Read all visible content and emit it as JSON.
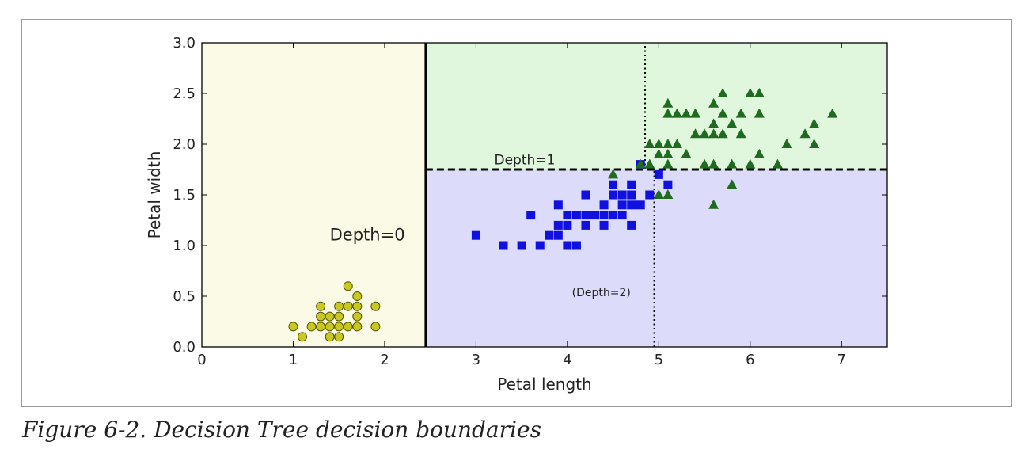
{
  "caption": "Figure 6-2. Decision Tree decision boundaries",
  "colors": {
    "region_setosa": "#fafae6",
    "region_versicolor": "#dcdcfa",
    "region_virginica": "#e0f7de",
    "setosa": "#c8c81e",
    "versicolor": "#1010e0",
    "virginica": "#1f6b1f"
  },
  "chart_data": {
    "type": "scatter",
    "title": "",
    "xlabel": "Petal length",
    "ylabel": "Petal width",
    "xlim": [
      0,
      7.5
    ],
    "ylim": [
      0,
      3.0
    ],
    "xticks": [
      "0",
      "1",
      "2",
      "3",
      "4",
      "5",
      "6",
      "7"
    ],
    "yticks": [
      "0.0",
      "0.5",
      "1.0",
      "1.5",
      "2.0",
      "2.5",
      "3.0"
    ],
    "grid": false,
    "regions": [
      {
        "class": "setosa",
        "x": [
          0,
          2.45
        ],
        "y": [
          0,
          3.0
        ]
      },
      {
        "class": "versicolor",
        "x": [
          2.45,
          7.5
        ],
        "y": [
          0,
          1.75
        ]
      },
      {
        "class": "virginica",
        "x": [
          2.45,
          7.5
        ],
        "y": [
          1.75,
          3.0
        ]
      }
    ],
    "boundaries": [
      {
        "label": "Depth=0",
        "style": "solid",
        "orientation": "vertical",
        "at": 2.45,
        "from": 0,
        "to": 3.0
      },
      {
        "label": "Depth=1",
        "style": "dashed",
        "orientation": "horizontal",
        "at": 1.75,
        "from": 2.45,
        "to": 7.5
      },
      {
        "label": "(Depth=2)",
        "style": "dotted",
        "orientation": "vertical",
        "at": 4.95,
        "from": 0,
        "to": 1.75
      },
      {
        "label": "",
        "style": "dotted",
        "orientation": "vertical",
        "at": 4.85,
        "from": 1.75,
        "to": 3.0
      }
    ],
    "annotations": [
      {
        "text": "Depth=0",
        "x": 1.4,
        "y": 1.05,
        "size": "big"
      },
      {
        "text": "Depth=1",
        "x": 3.2,
        "y": 1.8,
        "size": "mid"
      },
      {
        "text": "(Depth=2)",
        "x": 4.05,
        "y": 0.5,
        "size": "small"
      }
    ],
    "series": [
      {
        "class": "setosa",
        "marker": "circle",
        "points": [
          [
            1.0,
            0.2
          ],
          [
            1.1,
            0.1
          ],
          [
            1.2,
            0.2
          ],
          [
            1.3,
            0.2
          ],
          [
            1.3,
            0.3
          ],
          [
            1.3,
            0.4
          ],
          [
            1.4,
            0.1
          ],
          [
            1.4,
            0.2
          ],
          [
            1.4,
            0.3
          ],
          [
            1.5,
            0.1
          ],
          [
            1.5,
            0.2
          ],
          [
            1.5,
            0.3
          ],
          [
            1.5,
            0.4
          ],
          [
            1.6,
            0.2
          ],
          [
            1.6,
            0.4
          ],
          [
            1.6,
            0.6
          ],
          [
            1.7,
            0.2
          ],
          [
            1.7,
            0.3
          ],
          [
            1.7,
            0.4
          ],
          [
            1.7,
            0.5
          ],
          [
            1.9,
            0.2
          ],
          [
            1.9,
            0.4
          ]
        ]
      },
      {
        "class": "versicolor",
        "marker": "square",
        "points": [
          [
            3.0,
            1.1
          ],
          [
            3.3,
            1.0
          ],
          [
            3.5,
            1.0
          ],
          [
            3.6,
            1.3
          ],
          [
            3.7,
            1.0
          ],
          [
            3.8,
            1.1
          ],
          [
            3.9,
            1.1
          ],
          [
            3.9,
            1.2
          ],
          [
            3.9,
            1.4
          ],
          [
            4.0,
            1.0
          ],
          [
            4.0,
            1.2
          ],
          [
            4.0,
            1.3
          ],
          [
            4.1,
            1.0
          ],
          [
            4.1,
            1.3
          ],
          [
            4.2,
            1.2
          ],
          [
            4.2,
            1.3
          ],
          [
            4.2,
            1.5
          ],
          [
            4.3,
            1.3
          ],
          [
            4.4,
            1.2
          ],
          [
            4.4,
            1.3
          ],
          [
            4.4,
            1.4
          ],
          [
            4.5,
            1.3
          ],
          [
            4.5,
            1.5
          ],
          [
            4.5,
            1.6
          ],
          [
            4.6,
            1.3
          ],
          [
            4.6,
            1.4
          ],
          [
            4.6,
            1.5
          ],
          [
            4.7,
            1.2
          ],
          [
            4.7,
            1.4
          ],
          [
            4.7,
            1.5
          ],
          [
            4.7,
            1.6
          ],
          [
            4.8,
            1.4
          ],
          [
            4.8,
            1.8
          ],
          [
            4.9,
            1.5
          ],
          [
            5.0,
            1.7
          ],
          [
            5.1,
            1.6
          ]
        ]
      },
      {
        "class": "virginica",
        "marker": "triangle",
        "points": [
          [
            4.5,
            1.7
          ],
          [
            4.8,
            1.8
          ],
          [
            4.9,
            1.8
          ],
          [
            4.9,
            2.0
          ],
          [
            5.0,
            1.9
          ],
          [
            5.0,
            2.0
          ],
          [
            5.0,
            1.5
          ],
          [
            5.1,
            1.5
          ],
          [
            5.1,
            1.8
          ],
          [
            5.1,
            1.9
          ],
          [
            5.1,
            2.0
          ],
          [
            5.1,
            2.3
          ],
          [
            5.1,
            2.4
          ],
          [
            5.2,
            2.0
          ],
          [
            5.2,
            2.3
          ],
          [
            5.3,
            1.9
          ],
          [
            5.3,
            2.3
          ],
          [
            5.4,
            2.1
          ],
          [
            5.4,
            2.3
          ],
          [
            5.5,
            1.8
          ],
          [
            5.5,
            2.1
          ],
          [
            5.6,
            1.4
          ],
          [
            5.6,
            1.8
          ],
          [
            5.6,
            2.1
          ],
          [
            5.6,
            2.2
          ],
          [
            5.6,
            2.4
          ],
          [
            5.7,
            2.1
          ],
          [
            5.7,
            2.3
          ],
          [
            5.7,
            2.5
          ],
          [
            5.8,
            1.6
          ],
          [
            5.8,
            1.8
          ],
          [
            5.8,
            2.2
          ],
          [
            5.9,
            2.1
          ],
          [
            5.9,
            2.3
          ],
          [
            6.0,
            1.8
          ],
          [
            6.0,
            2.5
          ],
          [
            6.1,
            1.9
          ],
          [
            6.1,
            2.3
          ],
          [
            6.1,
            2.5
          ],
          [
            6.3,
            1.8
          ],
          [
            6.4,
            2.0
          ],
          [
            6.6,
            2.1
          ],
          [
            6.7,
            2.0
          ],
          [
            6.7,
            2.2
          ],
          [
            6.9,
            2.3
          ]
        ]
      }
    ]
  }
}
